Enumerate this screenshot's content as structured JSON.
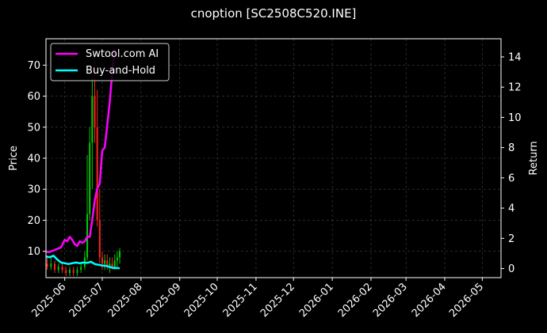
{
  "chart_data": {
    "type": "line",
    "title": "cnoption [SC2508C520.INE]",
    "xlabel": "",
    "ylabel": "Price",
    "ylabel_right": "Return",
    "x_ticks": [
      "2025-06",
      "2025-07",
      "2025-08",
      "2025-09",
      "2025-10",
      "2025-11",
      "2025-12",
      "2026-01",
      "2026-02",
      "2026-03",
      "2026-04",
      "2026-05"
    ],
    "xlim": [
      "2025-05-17",
      "2026-05-16"
    ],
    "y_left": {
      "ticks": [
        10,
        20,
        30,
        40,
        50,
        60,
        70
      ],
      "lim": [
        1.5,
        78.5
      ]
    },
    "y_right": {
      "ticks": [
        0,
        2,
        4,
        6,
        8,
        10,
        12,
        14
      ],
      "lim": [
        -0.6,
        15.2
      ]
    },
    "grid": true,
    "legend_placement": "top-left",
    "colors": {
      "background": "#000000",
      "text": "#ffffff",
      "grid": "#444444",
      "ai": "#ff00ff",
      "bh": "#00ffff",
      "up": "#00cc00",
      "down": "#ff2222"
    },
    "series": [
      {
        "name": "Swtool.com AI",
        "axis": "right",
        "x": [
          "2025-05-17",
          "2025-05-20",
          "2025-05-23",
          "2025-05-26",
          "2025-05-29",
          "2025-06-01",
          "2025-06-03",
          "2025-06-05",
          "2025-06-07",
          "2025-06-09",
          "2025-06-11",
          "2025-06-13",
          "2025-06-15",
          "2025-06-17",
          "2025-06-19",
          "2025-06-21",
          "2025-06-23",
          "2025-06-25",
          "2025-06-27",
          "2025-06-29",
          "2025-07-01",
          "2025-07-03",
          "2025-07-05",
          "2025-07-07",
          "2025-07-09",
          "2025-07-11"
        ],
        "values": [
          1.1,
          1.1,
          1.2,
          1.3,
          1.4,
          1.9,
          1.8,
          2.1,
          1.9,
          1.6,
          1.5,
          1.8,
          1.7,
          1.8,
          2.1,
          2.1,
          3.2,
          4.5,
          5.3,
          5.6,
          7.8,
          8.0,
          9.5,
          11.0,
          13.0,
          14.5
        ]
      },
      {
        "name": "Buy-and-Hold",
        "axis": "right",
        "x": [
          "2025-05-17",
          "2025-05-20",
          "2025-05-23",
          "2025-05-26",
          "2025-05-29",
          "2025-06-01",
          "2025-06-04",
          "2025-06-07",
          "2025-06-10",
          "2025-06-13",
          "2025-06-16",
          "2025-06-19",
          "2025-06-22",
          "2025-06-25",
          "2025-06-28",
          "2025-07-01",
          "2025-07-04",
          "2025-07-07",
          "2025-07-10",
          "2025-07-15"
        ],
        "values": [
          0.8,
          0.75,
          0.85,
          0.6,
          0.4,
          0.35,
          0.3,
          0.35,
          0.4,
          0.35,
          0.4,
          0.38,
          0.45,
          0.3,
          0.25,
          0.2,
          0.18,
          0.1,
          0.05,
          0.02
        ]
      }
    ],
    "candles": {
      "axis": "left",
      "x": [
        "2025-05-18",
        "2025-05-21",
        "2025-05-24",
        "2025-05-27",
        "2025-05-30",
        "2025-06-02",
        "2025-06-05",
        "2025-06-08",
        "2025-06-11",
        "2025-06-14",
        "2025-06-17",
        "2025-06-19",
        "2025-06-21",
        "2025-06-23",
        "2025-06-25",
        "2025-06-27",
        "2025-06-29",
        "2025-07-01",
        "2025-07-03",
        "2025-07-05",
        "2025-07-07",
        "2025-07-09",
        "2025-07-11",
        "2025-07-13",
        "2025-07-15"
      ],
      "open": [
        6,
        5,
        6,
        4,
        5,
        4,
        3,
        4,
        3,
        4,
        5,
        8,
        22,
        45,
        60,
        50,
        20,
        8,
        6,
        7,
        5,
        6,
        5,
        7,
        8
      ],
      "close": [
        5,
        6,
        4,
        5,
        4,
        3,
        4,
        3,
        4,
        5,
        8,
        22,
        45,
        60,
        50,
        20,
        8,
        6,
        7,
        5,
        6,
        5,
        7,
        8,
        10
      ],
      "high": [
        8,
        8,
        7,
        6,
        6,
        5,
        5,
        5,
        5,
        6,
        10,
        41,
        50,
        66,
        72,
        62,
        30,
        10,
        9,
        9,
        8,
        8,
        9,
        10,
        11
      ],
      "low": [
        4,
        4,
        3,
        3,
        3,
        2,
        2,
        2,
        2,
        3,
        4,
        7,
        20,
        30,
        45,
        18,
        6,
        4,
        4,
        4,
        3,
        4,
        4,
        5,
        6
      ]
    }
  }
}
